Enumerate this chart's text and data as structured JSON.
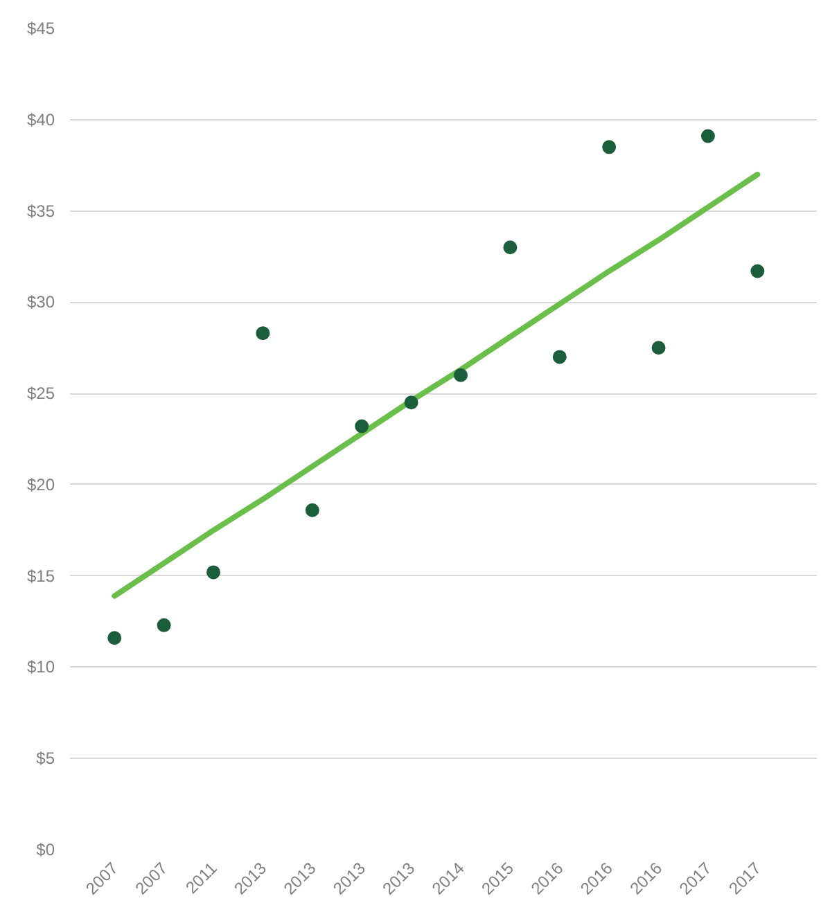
{
  "chart_data": {
    "type": "scatter",
    "categories": [
      "2007",
      "2007",
      "2011",
      "2013",
      "2013",
      "2013",
      "2013",
      "2014",
      "2015",
      "2016",
      "2016",
      "2016",
      "2017",
      "2017"
    ],
    "series": [
      {
        "color": "#1b5e3b",
        "marker": "circle",
        "values": [
          11.6,
          12.3,
          15.2,
          28.3,
          18.6,
          23.2,
          24.5,
          26.0,
          33.0,
          27.0,
          38.5,
          27.5,
          39.1,
          31.7
        ]
      },
      {
        "type": "line",
        "color": "#6abf4b",
        "line_style": "solid",
        "values": [
          13.9,
          15.7,
          17.5,
          19.2,
          21.0,
          22.8,
          24.6,
          26.3,
          28.1,
          29.9,
          31.7,
          33.4,
          35.2,
          37.0
        ]
      }
    ],
    "ylim": [
      0,
      45
    ],
    "yticks": [
      {
        "value": 0,
        "label": "$0"
      },
      {
        "value": 5,
        "label": "$5"
      },
      {
        "value": 10,
        "label": "$10"
      },
      {
        "value": 15,
        "label": "$15"
      },
      {
        "value": 20,
        "label": "$20"
      },
      {
        "value": 25,
        "label": "$25"
      },
      {
        "value": 30,
        "label": "$30"
      },
      {
        "value": 35,
        "label": "$35"
      },
      {
        "value": 40,
        "label": "$40"
      },
      {
        "value": 45,
        "label": "$45"
      }
    ],
    "grid": "y"
  }
}
